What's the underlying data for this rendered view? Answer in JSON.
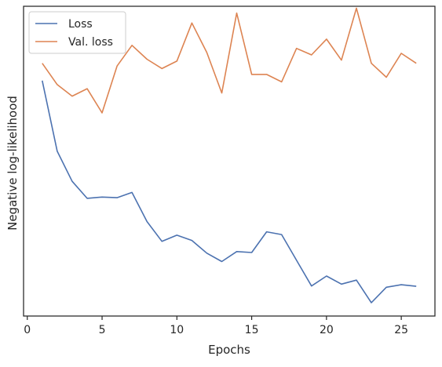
{
  "chart_data": {
    "type": "line",
    "title": "",
    "xlabel": "Epochs",
    "ylabel": "Negative log-likelihood",
    "xlim": [
      -0.25,
      27.25
    ],
    "ylim": [
      0,
      100
    ],
    "xticks": [
      0,
      5,
      10,
      15,
      20,
      25
    ],
    "y_tick_labels_shown": false,
    "grid": false,
    "legend_position": "top-left",
    "x": [
      1,
      2,
      3,
      4,
      5,
      6,
      7,
      8,
      9,
      10,
      11,
      12,
      13,
      14,
      15,
      16,
      17,
      18,
      19,
      20,
      21,
      22,
      23,
      24,
      25,
      26
    ],
    "series": [
      {
        "name": "Loss",
        "color": "#4c72b0",
        "values": [
          76.0,
          53.2,
          43.5,
          38.0,
          38.4,
          38.2,
          39.9,
          30.5,
          24.1,
          26.1,
          24.4,
          20.3,
          17.6,
          20.8,
          20.5,
          27.2,
          26.3,
          18.0,
          9.7,
          12.9,
          10.3,
          11.6,
          4.3,
          9.3,
          10.1,
          9.6
        ]
      },
      {
        "name": "Val. loss",
        "color": "#dd8452",
        "values": [
          81.6,
          74.7,
          71.0,
          73.4,
          65.6,
          80.7,
          87.4,
          82.9,
          79.9,
          82.3,
          94.6,
          85.1,
          72.0,
          97.8,
          78.0,
          78.0,
          75.6,
          86.4,
          84.3,
          89.4,
          82.6,
          99.4,
          81.6,
          77.1,
          84.8,
          81.6
        ]
      }
    ]
  }
}
